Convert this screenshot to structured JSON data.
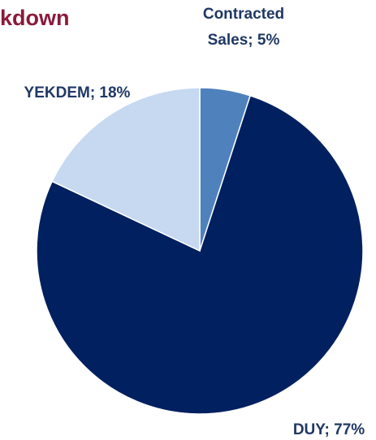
{
  "chart_data": {
    "type": "pie",
    "title": "kdown",
    "values": [
      5,
      77,
      18
    ],
    "value_labels": [
      "Contracted Sales; 5%",
      "DUY; 77%",
      "YEKDEM; 18%"
    ],
    "colors": [
      "#4f81bd",
      "#002060",
      "#c6d9f1"
    ]
  }
}
